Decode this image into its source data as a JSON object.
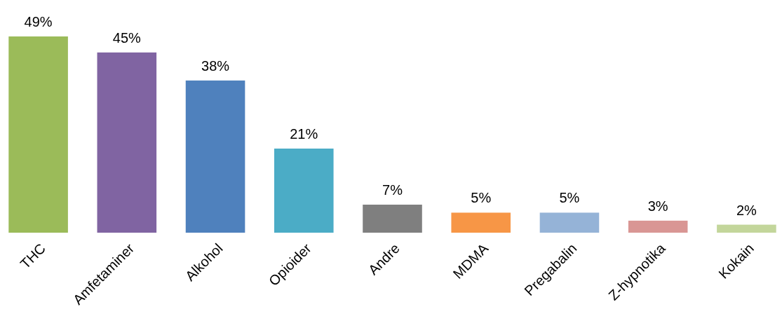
{
  "chart_data": {
    "type": "bar",
    "categories": [
      "THC",
      "Amfetaminer",
      "Alkohol",
      "Opioider",
      "Andre",
      "MDMA",
      "Pregabalin",
      "Z-hypnotika",
      "Kokain"
    ],
    "values": [
      49,
      45,
      38,
      21,
      7,
      5,
      5,
      3,
      2
    ],
    "colors": [
      "#9bbb59",
      "#8064a2",
      "#4f81bd",
      "#4bacc6",
      "#7f7f7f",
      "#f79646",
      "#95b3d7",
      "#d99694",
      "#c3d69b"
    ],
    "value_labels": [
      "49%",
      "45%",
      "38%",
      "21%",
      "7%",
      "5%",
      "5%",
      "3%",
      "2%"
    ]
  }
}
